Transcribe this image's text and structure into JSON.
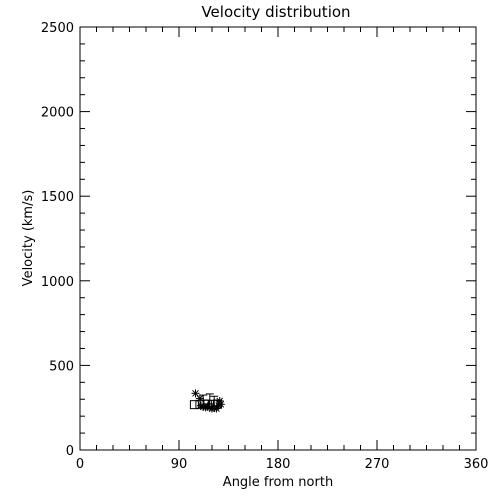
{
  "chart_data": {
    "type": "scatter",
    "title": "Velocity distribution",
    "xlabel": "Angle from north",
    "ylabel": "Velocity (km/s)",
    "xlim": [
      0,
      360
    ],
    "ylim": [
      0,
      2500
    ],
    "xticks": [
      0,
      90,
      180,
      270,
      360
    ],
    "yticks": [
      0,
      500,
      1000,
      1500,
      2000,
      2500
    ],
    "grid": false,
    "series": [
      {
        "marker": "asterisk",
        "points": [
          [
            105,
            335
          ],
          [
            109,
            305
          ],
          [
            110,
            262
          ],
          [
            112,
            255
          ],
          [
            114,
            252
          ],
          [
            116,
            258
          ],
          [
            118,
            250
          ],
          [
            120,
            245
          ],
          [
            122,
            248
          ],
          [
            124,
            245
          ],
          [
            126,
            262
          ],
          [
            128,
            270
          ],
          [
            127,
            290
          ]
        ]
      },
      {
        "marker": "square",
        "points": [
          [
            104,
            268
          ],
          [
            109,
            270
          ],
          [
            113,
            272
          ],
          [
            116,
            270
          ],
          [
            121,
            270
          ],
          [
            125,
            272
          ]
        ]
      },
      {
        "marker": "error-bar",
        "points": [
          [
            112,
            295
          ],
          [
            118,
            302
          ],
          [
            122,
            288
          ]
        ]
      }
    ]
  }
}
